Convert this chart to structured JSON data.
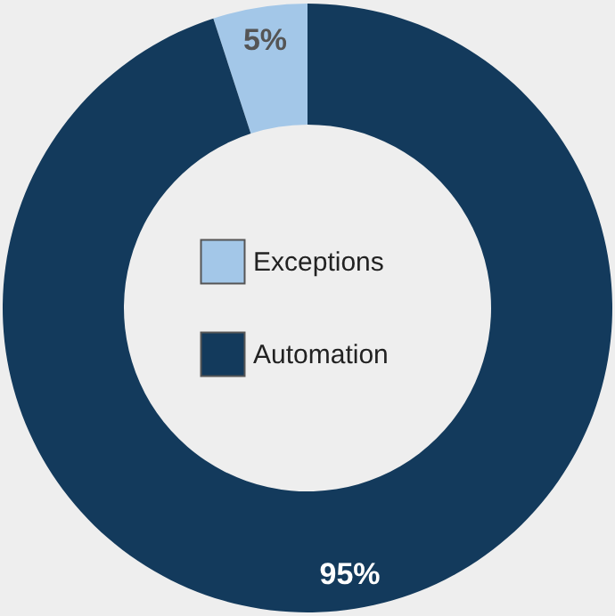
{
  "chart_data": {
    "type": "donut",
    "categories": [
      "Exceptions",
      "Automation"
    ],
    "values": [
      5,
      95
    ],
    "colors": [
      "#a3c7e8",
      "#133a5c"
    ],
    "value_labels": [
      "5%",
      "95%"
    ],
    "legend": "center"
  }
}
